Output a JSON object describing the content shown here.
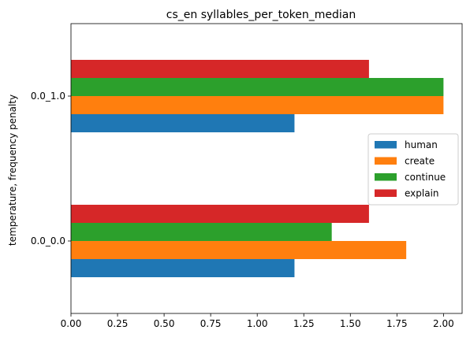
{
  "chart_data": {
    "type": "bar",
    "orientation": "horizontal",
    "title": "cs_en syllables_per_token_median",
    "xlabel": "",
    "ylabel": "temperature, frequency penalty",
    "categories": [
      "0.0_0.0",
      "0.0_1.0"
    ],
    "series": [
      {
        "name": "human",
        "color": "#1f77b4",
        "values": [
          1.2,
          1.2
        ]
      },
      {
        "name": "create",
        "color": "#ff7f0e",
        "values": [
          1.8,
          2.0
        ]
      },
      {
        "name": "continue",
        "color": "#2ca02c",
        "values": [
          1.4,
          2.0
        ]
      },
      {
        "name": "explain",
        "color": "#d62728",
        "values": [
          1.6,
          1.6
        ]
      }
    ],
    "xticks": [
      "0.00",
      "0.25",
      "0.50",
      "0.75",
      "1.00",
      "1.25",
      "1.50",
      "1.75",
      "2.00"
    ],
    "xlim": [
      0,
      2.1
    ],
    "grid": false,
    "legend_position": "center-right"
  }
}
